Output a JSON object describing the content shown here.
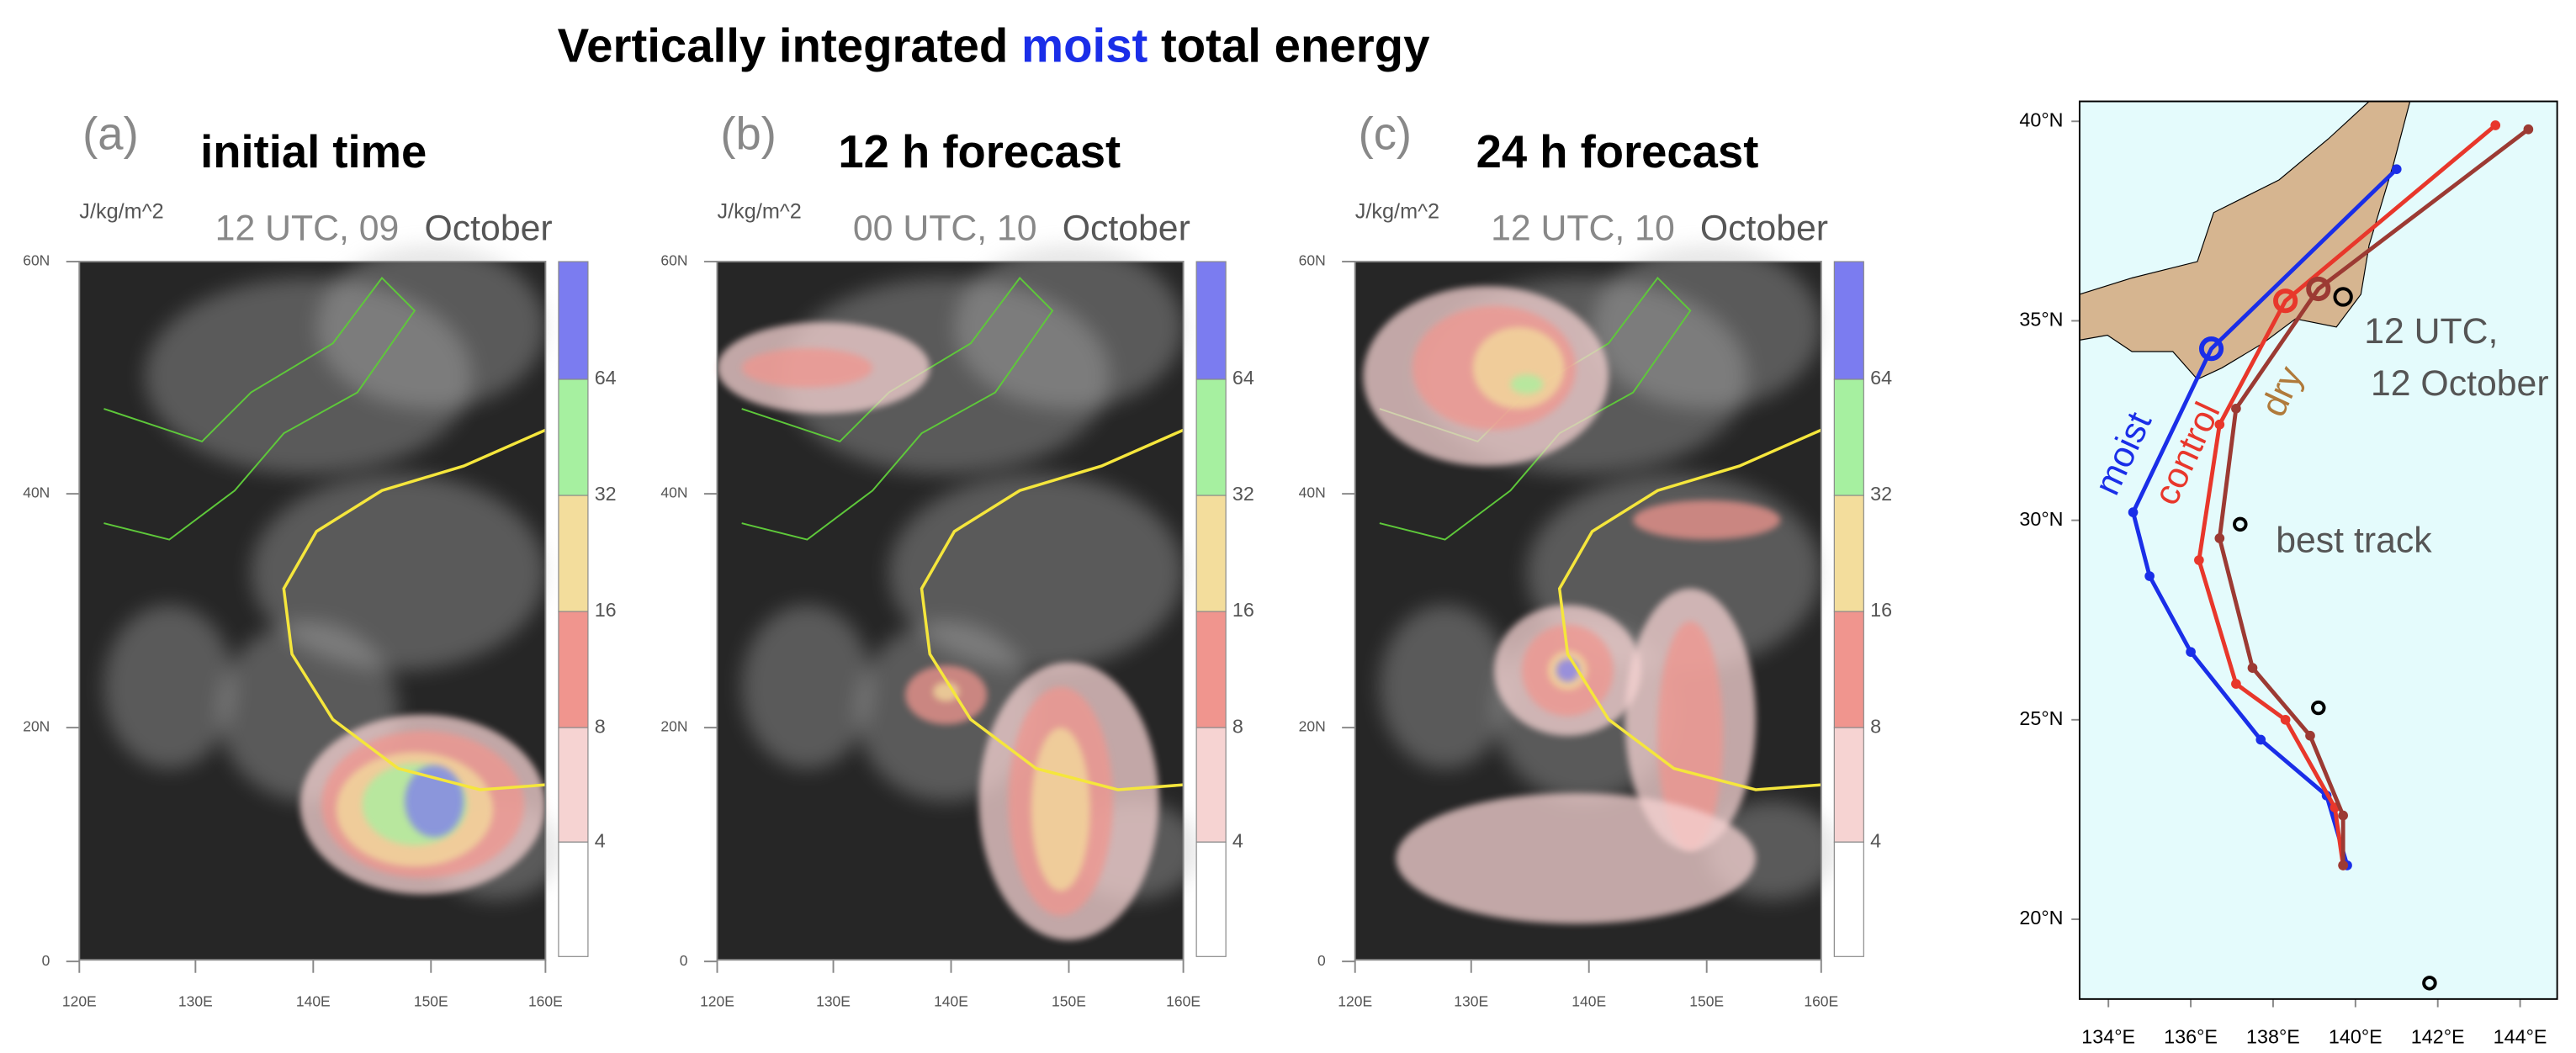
{
  "title": {
    "before": "Vertically integrated",
    "highlight": "moist",
    "after": "total energy",
    "highlight_color": "#1a2ee8"
  },
  "panels": [
    {
      "letter": "(a)",
      "heading": "initial time",
      "unit": "J/kg/m^2",
      "time": "12 UTC, 09",
      "month": "October"
    },
    {
      "letter": "(b)",
      "heading": "12 h forecast",
      "unit": "J/kg/m^2",
      "time": "00 UTC, 10",
      "month": "October"
    },
    {
      "letter": "(c)",
      "heading": "24 h forecast",
      "unit": "J/kg/m^2",
      "time": "12 UTC, 10",
      "month": "October"
    }
  ],
  "map_axes": {
    "yticks": [
      "60N",
      "40N",
      "20N",
      "0"
    ],
    "xticks": [
      "120E",
      "130E",
      "140E",
      "150E",
      "160E"
    ]
  },
  "colorbar": {
    "ticks": [
      "64",
      "32",
      "16",
      "8",
      "4"
    ],
    "colors": [
      "#7b7cf0",
      "#a6f0a0",
      "#f3dd9c",
      "#f0958e",
      "#f6d3d2",
      "#ffffff"
    ]
  },
  "track_map": {
    "xlim": [
      133.3,
      144.9
    ],
    "ylim": [
      18,
      40.5
    ],
    "xticks": [
      {
        "value": 134,
        "label": "134°E"
      },
      {
        "value": 136,
        "label": "136°E"
      },
      {
        "value": 138,
        "label": "138°E"
      },
      {
        "value": 140,
        "label": "140°E"
      },
      {
        "value": 142,
        "label": "142°E"
      },
      {
        "value": 144,
        "label": "144°E"
      }
    ],
    "yticks": [
      {
        "value": 20,
        "label": "20°N"
      },
      {
        "value": 25,
        "label": "25°N"
      },
      {
        "value": 30,
        "label": "30°N"
      },
      {
        "value": 35,
        "label": "35°N"
      },
      {
        "value": 40,
        "label": "40°N"
      }
    ],
    "series": [
      {
        "name": "moist",
        "color": "#1a2ee8",
        "lon": [
          141.0,
          136.5,
          134.6,
          135.0,
          136.0,
          137.7,
          139.3,
          139.8
        ],
        "lat": [
          38.8,
          34.3,
          30.2,
          28.6,
          26.7,
          24.5,
          23.1,
          21.35
        ]
      },
      {
        "name": "control",
        "color": "#e8372b",
        "lon": [
          143.4,
          138.3,
          136.7,
          136.2,
          137.1,
          138.3,
          139.5,
          139.7
        ],
        "lat": [
          39.9,
          35.5,
          32.4,
          29.0,
          25.9,
          25.0,
          22.8,
          21.35
        ]
      },
      {
        "name": "dry",
        "color": "#9c3a33",
        "lon": [
          144.2,
          139.1,
          137.1,
          136.7,
          137.5,
          138.9,
          139.7,
          139.7
        ],
        "lat": [
          39.8,
          35.8,
          32.8,
          29.55,
          26.3,
          24.6,
          22.6,
          21.35
        ]
      }
    ],
    "best_track": {
      "name": "best track",
      "lon": [
        139.7,
        137.2,
        139.1,
        141.8
      ],
      "lat": [
        35.6,
        29.9,
        25.3,
        18.4
      ]
    },
    "annotation": [
      "12 UTC,",
      "12 October"
    ]
  }
}
